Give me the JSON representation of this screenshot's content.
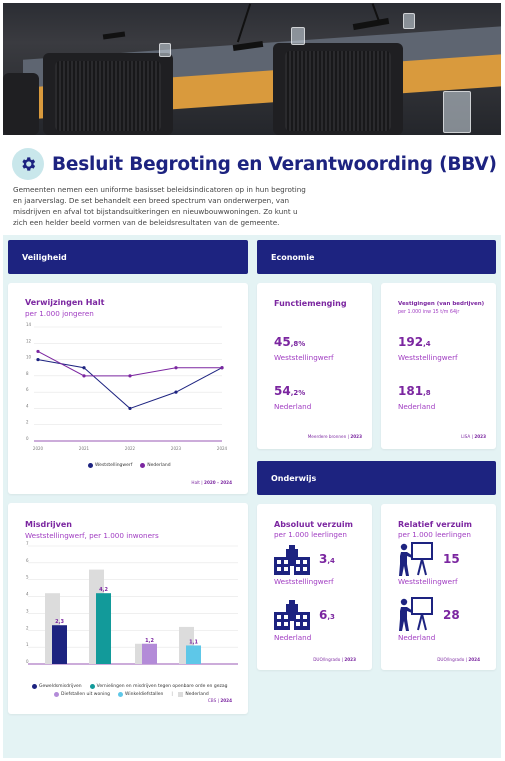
{
  "header": {
    "title": "Besluit Begroting en Verantwoording (BBV)",
    "intro": "Gemeenten nemen een uniforme basisset beleidsindicatoren op in hun begroting en jaarverslag. De set behandelt een breed spectrum van onderwerpen, van misdrijven en afval tot bijstandsuitkeringen en nieuwbouwwoningen. Zo kunt u zich een helder beeld vormen van de beleidsresultaten van de gemeente.",
    "icon": "gear-icon"
  },
  "colors": {
    "navy": "#1d2380",
    "purple": "#7b26a0",
    "teal": "#129a9a",
    "lilac": "#b38bd8",
    "lightblue": "#5ec7e8",
    "grey": "#dcdcdc",
    "background": "#e4f3f4"
  },
  "sections": {
    "veiligheid": "Veiligheid",
    "economie": "Economie",
    "onderwijs": "Onderwijs"
  },
  "halt": {
    "title": "Verwijzingen Halt",
    "subtitle": "per 1.000 jongeren",
    "source": "Halt",
    "period": "2020 - 2024"
  },
  "misdrijven": {
    "title": "Misdrijven",
    "subtitle": "Weststellingwerf, per 1.000 inwoners",
    "source": "CBS",
    "year": "2024",
    "value_labels": [
      "2,3",
      "4,2",
      "1,2",
      "1,1"
    ]
  },
  "functiemenging": {
    "title": "Functiemenging",
    "value1": "45",
    "unit1": ",8%",
    "place1": "Weststellingwerf",
    "value2": "54",
    "unit2": ",2%",
    "place2": "Nederland",
    "source": "Meerdere bronnen",
    "year": "2023"
  },
  "vestigingen": {
    "title": "Vestigingen (van bedrijven)",
    "subtitle": "per 1.000 inw 15 t/m 64jr",
    "value1": "192",
    "unit1": ",4",
    "place1": "Weststellingwerf",
    "value2": "181",
    "unit2": ",8",
    "place2": "Nederland",
    "source": "LISA",
    "year": "2023"
  },
  "absoluut": {
    "title": "Absoluut verzuim",
    "subtitle": "per 1.000 leerlingen",
    "value1": "3",
    "unit1": ",4",
    "place1": "Weststellingwerf",
    "value2": "6",
    "unit2": ",3",
    "place2": "Nederland",
    "source": "DUO/Ingrado",
    "year": "2023",
    "icon": "school-building-icon"
  },
  "relatief": {
    "title": "Relatief verzuim",
    "subtitle": "per 1.000 leerlingen",
    "value1": "15",
    "place1": "Weststellingwerf",
    "value2": "28",
    "place2": "Nederland",
    "source": "DUO/Ingrado",
    "year": "2024",
    "icon": "teacher-at-board-icon"
  },
  "chart_data": [
    {
      "type": "line",
      "title": "Verwijzingen Halt",
      "subtitle": "per 1.000 jongeren",
      "x": [
        "2020",
        "2021",
        "2022",
        "2023",
        "2024"
      ],
      "series": [
        {
          "name": "Weststellingwerf",
          "values": [
            10,
            9,
            4,
            6,
            9
          ],
          "color": "#1d2380"
        },
        {
          "name": "Nederland",
          "values": [
            11,
            8,
            8,
            9,
            9
          ],
          "color": "#7b26a0"
        }
      ],
      "ylim": [
        0,
        14
      ],
      "yticks": [
        "0",
        "2",
        "4",
        "6",
        "8",
        "10",
        "12",
        "14"
      ],
      "grid": true,
      "legend": "bottom"
    },
    {
      "type": "bar",
      "title": "Misdrijven",
      "subtitle": "Weststellingwerf, per 1.000 inwoners",
      "categories": [
        "Geweldsmisdrijven",
        "Vernielingen en misdrijven tegen openbare orde en gezag",
        "Diefstallen uit woning",
        "Winkeldiefstallen"
      ],
      "series": [
        {
          "name": "Nederland",
          "values": [
            4.2,
            5.6,
            1.2,
            2.2
          ],
          "color": "#dcdcdc"
        },
        {
          "name": "Weststellingwerf",
          "values": [
            2.3,
            4.2,
            1.2,
            1.1
          ]
        }
      ],
      "bar_colors": [
        "#1d2380",
        "#129a9a",
        "#b38bd8",
        "#5ec7e8"
      ],
      "ylim": [
        0,
        7
      ],
      "yticks": [
        "0",
        "1",
        "2",
        "3",
        "4",
        "5",
        "6",
        "7"
      ],
      "grid": true,
      "legend": "bottom"
    }
  ],
  "legend_halt": [
    "Weststellingwerf",
    "Nederland"
  ],
  "legend_misdrijven": [
    "Geweldsmisdrijven",
    "Vernielingen en misdrijven tegen openbare orde en gezag",
    "Diefstallen uit woning",
    "Winkeldiefstallen",
    "Nederland"
  ]
}
